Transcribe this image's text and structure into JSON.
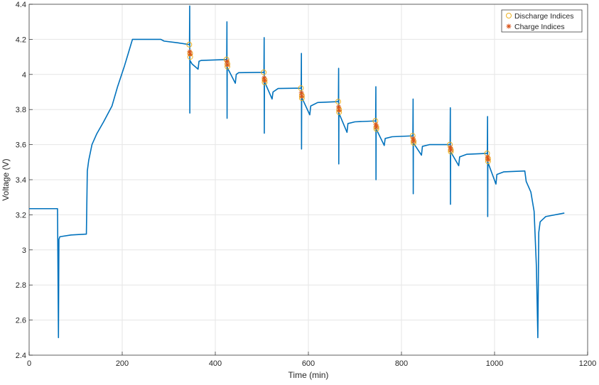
{
  "chart_data": {
    "type": "line",
    "title": "",
    "xlabel": "Time (min)",
    "ylabel": "Voltage (V)",
    "xlim": [
      0,
      1200
    ],
    "ylim": [
      2.4,
      4.4
    ],
    "xticks": [
      0,
      200,
      400,
      600,
      800,
      1000,
      1200
    ],
    "xtick_labels": [
      "0",
      "200",
      "400",
      "600",
      "800",
      "1000",
      "1200"
    ],
    "yticks": [
      2.4,
      2.6,
      2.8,
      3.0,
      3.2,
      3.4,
      3.6,
      3.8,
      4.0,
      4.2,
      4.4
    ],
    "ytick_labels": [
      "2.4",
      "2.6",
      "2.8",
      "3",
      "3.2",
      "3.4",
      "3.6",
      "3.8",
      "4",
      "4.2",
      "4.4"
    ],
    "grid": true,
    "legend_position": "top-right",
    "colors": {
      "line": "#0072BD",
      "discharge": "#EDB120",
      "charge": "#D95319",
      "grid": "#e6e6e6",
      "axis": "#262626"
    },
    "series": [
      {
        "points": [
          [
            0,
            3.235
          ],
          [
            61,
            3.235
          ],
          [
            63,
            2.5
          ],
          [
            64,
            3.06
          ],
          [
            66,
            3.075
          ],
          [
            90,
            3.085
          ],
          [
            123,
            3.09
          ],
          [
            125,
            3.45
          ],
          [
            128,
            3.51
          ],
          [
            135,
            3.6
          ],
          [
            145,
            3.66
          ],
          [
            160,
            3.73
          ],
          [
            178,
            3.82
          ],
          [
            190,
            3.93
          ],
          [
            205,
            4.05
          ],
          [
            213,
            4.12
          ],
          [
            222,
            4.2
          ],
          [
            283,
            4.2
          ],
          [
            290,
            4.19
          ],
          [
            320,
            4.18
          ],
          [
            344.5,
            4.17
          ],
          [
            345,
            4.39
          ],
          [
            345.3,
            3.78
          ],
          [
            345.6,
            4.08
          ],
          [
            350,
            4.06
          ],
          [
            363,
            4.03
          ],
          [
            365,
            4.075
          ],
          [
            370,
            4.08
          ],
          [
            424.5,
            4.085
          ],
          [
            425,
            4.3
          ],
          [
            425.3,
            3.75
          ],
          [
            425.6,
            4.04
          ],
          [
            443,
            3.95
          ],
          [
            445,
            4.0
          ],
          [
            450,
            4.01
          ],
          [
            504.5,
            4.012
          ],
          [
            505,
            4.21
          ],
          [
            505.3,
            3.665
          ],
          [
            505.6,
            3.96
          ],
          [
            522,
            3.86
          ],
          [
            524,
            3.9
          ],
          [
            535,
            3.92
          ],
          [
            584.5,
            3.922
          ],
          [
            585,
            4.12
          ],
          [
            585.3,
            3.575
          ],
          [
            585.6,
            3.87
          ],
          [
            603,
            3.77
          ],
          [
            605,
            3.82
          ],
          [
            620,
            3.84
          ],
          [
            664.5,
            3.845
          ],
          [
            665,
            4.035
          ],
          [
            665.3,
            3.49
          ],
          [
            665.6,
            3.78
          ],
          [
            683,
            3.67
          ],
          [
            685,
            3.72
          ],
          [
            700,
            3.73
          ],
          [
            744.5,
            3.735
          ],
          [
            745,
            3.93
          ],
          [
            745.3,
            3.4
          ],
          [
            745.6,
            3.69
          ],
          [
            763,
            3.595
          ],
          [
            765,
            3.635
          ],
          [
            780,
            3.645
          ],
          [
            824.5,
            3.65
          ],
          [
            825,
            3.86
          ],
          [
            825.3,
            3.32
          ],
          [
            825.6,
            3.61
          ],
          [
            843,
            3.54
          ],
          [
            845,
            3.59
          ],
          [
            860,
            3.6
          ],
          [
            904.5,
            3.6
          ],
          [
            905,
            3.81
          ],
          [
            905.3,
            3.26
          ],
          [
            905.6,
            3.56
          ],
          [
            923,
            3.48
          ],
          [
            925,
            3.53
          ],
          [
            940,
            3.545
          ],
          [
            984.5,
            3.55
          ],
          [
            985,
            3.76
          ],
          [
            985.3,
            3.19
          ],
          [
            985.6,
            3.5
          ],
          [
            1003,
            3.375
          ],
          [
            1005,
            3.43
          ],
          [
            1020,
            3.445
          ],
          [
            1065,
            3.45
          ],
          [
            1068,
            3.39
          ],
          [
            1078,
            3.33
          ],
          [
            1085,
            3.22
          ],
          [
            1090,
            2.9
          ],
          [
            1093,
            2.5
          ],
          [
            1095,
            3.1
          ],
          [
            1098,
            3.16
          ],
          [
            1110,
            3.19
          ],
          [
            1150,
            3.21
          ]
        ]
      }
    ],
    "markers": [
      {
        "name": "Discharge Indices",
        "symbol": "circle",
        "points": [
          [
            344,
            4.17
          ],
          [
            346,
            4.12
          ],
          [
            346,
            4.1
          ],
          [
            424,
            4.085
          ],
          [
            426,
            4.06
          ],
          [
            426,
            4.045
          ],
          [
            504,
            4.012
          ],
          [
            506,
            3.97
          ],
          [
            506,
            3.955
          ],
          [
            584,
            3.922
          ],
          [
            586,
            3.88
          ],
          [
            586,
            3.865
          ],
          [
            664,
            3.845
          ],
          [
            666,
            3.8
          ],
          [
            666,
            3.785
          ],
          [
            744,
            3.735
          ],
          [
            746,
            3.7
          ],
          [
            746,
            3.69
          ],
          [
            824,
            3.65
          ],
          [
            826,
            3.62
          ],
          [
            826,
            3.61
          ],
          [
            904,
            3.6
          ],
          [
            906,
            3.57
          ],
          [
            906,
            3.56
          ],
          [
            984,
            3.55
          ],
          [
            986,
            3.52
          ],
          [
            986,
            3.505
          ]
        ]
      },
      {
        "name": "Charge Indices",
        "symbol": "star",
        "points": [
          [
            345,
            4.13
          ],
          [
            346,
            4.115
          ],
          [
            425,
            4.075
          ],
          [
            426,
            4.055
          ],
          [
            505,
            3.98
          ],
          [
            506,
            3.965
          ],
          [
            585,
            3.895
          ],
          [
            586,
            3.875
          ],
          [
            665,
            3.815
          ],
          [
            666,
            3.795
          ],
          [
            745,
            3.715
          ],
          [
            746,
            3.7
          ],
          [
            825,
            3.635
          ],
          [
            826,
            3.62
          ],
          [
            905,
            3.585
          ],
          [
            906,
            3.57
          ],
          [
            985,
            3.53
          ],
          [
            986,
            3.515
          ]
        ]
      }
    ]
  }
}
